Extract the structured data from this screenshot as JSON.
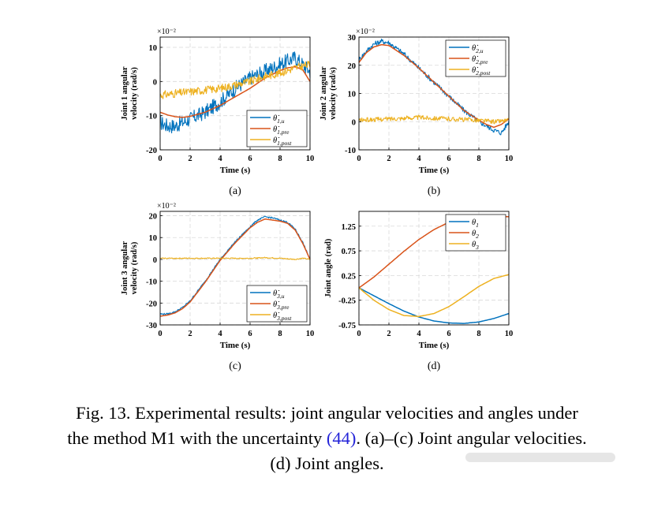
{
  "colors": {
    "u": "#0072BD",
    "pre": "#D95319",
    "post": "#EDB120",
    "theta1": "#0072BD",
    "theta2": "#D95319",
    "theta3": "#EDB120"
  },
  "chart_data": [
    {
      "id": "a",
      "type": "line",
      "panel_label": "(a)",
      "xlabel": "Time (s)",
      "ylabel_line1": "Joint 1 angular",
      "ylabel_line2": "velocity (rad/s)",
      "exponent": "×10⁻²",
      "xlim": [
        0,
        10
      ],
      "ylim": [
        -20,
        13
      ],
      "xticks": [
        0,
        2,
        4,
        6,
        8,
        10
      ],
      "yticks": [
        -20,
        -10,
        0,
        10
      ],
      "legend": {
        "position": "bottom-right",
        "entries": [
          "θ̇1,u",
          "θ̇1,pre",
          "θ̇1,post"
        ]
      },
      "series": [
        {
          "key": "u",
          "noise": 2.2,
          "x": [
            0,
            0.5,
            1,
            2,
            3,
            4,
            5,
            6,
            7,
            8,
            8.5,
            9,
            9.5,
            10
          ],
          "y": [
            -12,
            -13,
            -13,
            -11,
            -9,
            -6,
            -2,
            1,
            3,
            5,
            6,
            7,
            5,
            3
          ]
        },
        {
          "key": "pre",
          "noise": 0,
          "x": [
            0,
            0.5,
            1,
            1.5,
            2,
            3,
            4,
            5,
            6,
            7,
            8,
            8.5,
            9,
            9.5,
            10
          ],
          "y": [
            -9,
            -9.8,
            -10.3,
            -10.5,
            -10.2,
            -9,
            -7,
            -4.5,
            -2,
            1,
            3.2,
            4,
            4.3,
            3.5,
            0
          ]
        },
        {
          "key": "post",
          "noise": 1.2,
          "x": [
            0,
            1,
            2,
            3,
            4,
            5,
            6,
            7,
            8,
            9,
            10
          ],
          "y": [
            -4,
            -3.5,
            -3,
            -2.5,
            -2,
            -1,
            0,
            1.5,
            2.5,
            4,
            5
          ]
        }
      ]
    },
    {
      "id": "b",
      "type": "line",
      "panel_label": "(b)",
      "xlabel": "Time (s)",
      "ylabel_line1": "Joint 2 angular",
      "ylabel_line2": "velocity (rad/s)",
      "exponent": "×10⁻²",
      "xlim": [
        0,
        10
      ],
      "ylim": [
        -10,
        30
      ],
      "xticks": [
        0,
        2,
        4,
        6,
        8,
        10
      ],
      "yticks": [
        -10,
        0,
        10,
        20,
        30
      ],
      "legend": {
        "position": "top-right",
        "entries": [
          "θ̇2,u",
          "θ̇2,pre",
          "θ̇2,post"
        ]
      },
      "series": [
        {
          "key": "u",
          "noise": 0.9,
          "x": [
            0,
            0.5,
            1,
            1.5,
            2,
            3,
            4,
            5,
            6,
            7,
            8,
            8.5,
            9,
            9.5,
            10
          ],
          "y": [
            22,
            25,
            27.5,
            28.5,
            28,
            24,
            19,
            14,
            9,
            4,
            0,
            -1.5,
            -3,
            -4,
            0
          ]
        },
        {
          "key": "pre",
          "noise": 0,
          "x": [
            0,
            0.5,
            1,
            1.5,
            2,
            3,
            4,
            5,
            6,
            7,
            8,
            8.5,
            9,
            9.5,
            10
          ],
          "y": [
            21,
            24.5,
            26.5,
            27.3,
            27,
            23.5,
            19,
            14,
            9,
            4,
            0.5,
            -1,
            -2,
            -1,
            1
          ]
        },
        {
          "key": "post",
          "noise": 0.8,
          "x": [
            0,
            2,
            4,
            6,
            8,
            9,
            10
          ],
          "y": [
            0.5,
            1,
            1.5,
            1,
            0.5,
            0,
            0.5
          ]
        }
      ]
    },
    {
      "id": "c",
      "type": "line",
      "panel_label": "(c)",
      "xlabel": "Time (s)",
      "ylabel_line1": "Joint 3 angular",
      "ylabel_line2": "velocity (rad/s)",
      "exponent": "×10⁻²",
      "xlim": [
        0,
        10
      ],
      "ylim": [
        -30,
        22
      ],
      "xticks": [
        0,
        2,
        4,
        6,
        8,
        10
      ],
      "yticks": [
        -30,
        -20,
        -10,
        0,
        10,
        20
      ],
      "legend": {
        "position": "bottom-right",
        "entries": [
          "θ̇3,u",
          "θ̇3,pre",
          "θ̇3,post"
        ]
      },
      "series": [
        {
          "key": "u",
          "noise": 0.35,
          "x": [
            0,
            0.5,
            1,
            1.5,
            2,
            3,
            4,
            5,
            6,
            6.5,
            7,
            7.5,
            8,
            8.5,
            9,
            9.5,
            10
          ],
          "y": [
            -25,
            -25,
            -24,
            -22,
            -19,
            -10,
            0,
            8,
            15,
            18,
            19.5,
            19,
            18,
            17,
            14,
            8,
            0
          ]
        },
        {
          "key": "pre",
          "noise": 0,
          "x": [
            0,
            0.5,
            1,
            1.5,
            2,
            3,
            4,
            5,
            6,
            6.5,
            7,
            7.5,
            8,
            8.5,
            9,
            9.5,
            10
          ],
          "y": [
            -26,
            -25.5,
            -24.5,
            -22.5,
            -19.5,
            -10.5,
            -0.5,
            7.5,
            14.5,
            17,
            18.5,
            18,
            17.5,
            16.5,
            13.5,
            7.5,
            0
          ]
        },
        {
          "key": "post",
          "noise": 0.25,
          "x": [
            0,
            2,
            4,
            6,
            7,
            8,
            9,
            9.5,
            10
          ],
          "y": [
            0.5,
            0.5,
            0.5,
            0.5,
            0.8,
            0.5,
            0,
            0.5,
            0
          ]
        }
      ]
    },
    {
      "id": "d",
      "type": "line",
      "panel_label": "(d)",
      "xlabel": "Time (s)",
      "ylabel_line1": "Joint angle (rad)",
      "ylabel_line2": "",
      "exponent": "",
      "xlim": [
        0,
        10
      ],
      "ylim": [
        -0.75,
        1.55
      ],
      "xticks": [
        0,
        2,
        4,
        6,
        8,
        10
      ],
      "yticks": [
        -0.75,
        -0.25,
        0.25,
        0.75,
        1.25
      ],
      "legend": {
        "position": "top-right",
        "entries": [
          "θ1",
          "θ2",
          "θ3"
        ]
      },
      "series": [
        {
          "key": "theta1",
          "noise": 0,
          "x": [
            0,
            1,
            2,
            3,
            4,
            5,
            6,
            7,
            8,
            9,
            10
          ],
          "y": [
            0,
            -0.16,
            -0.32,
            -0.47,
            -0.59,
            -0.67,
            -0.71,
            -0.72,
            -0.69,
            -0.62,
            -0.52
          ]
        },
        {
          "key": "theta2",
          "noise": 0,
          "x": [
            0,
            1,
            2,
            3,
            4,
            5,
            6,
            7,
            8,
            9,
            10
          ],
          "y": [
            0,
            0.22,
            0.48,
            0.74,
            0.98,
            1.18,
            1.33,
            1.42,
            1.46,
            1.46,
            1.44
          ]
        },
        {
          "key": "theta3",
          "noise": 0,
          "x": [
            0,
            1,
            2,
            3,
            4,
            5,
            6,
            7,
            8,
            9,
            10
          ],
          "y": [
            0,
            -0.25,
            -0.44,
            -0.56,
            -0.58,
            -0.52,
            -0.38,
            -0.18,
            0.03,
            0.19,
            0.27
          ]
        }
      ]
    }
  ],
  "caption": {
    "line1": "Fig. 13.   Experimental results: joint angular velocities and angles under",
    "line2_a": "the method M1 with the uncertainty ",
    "line2_ref": "(44)",
    "line2_b": ". (a)–(c) Joint angular velocities.",
    "line3": "(d) Joint angles."
  }
}
